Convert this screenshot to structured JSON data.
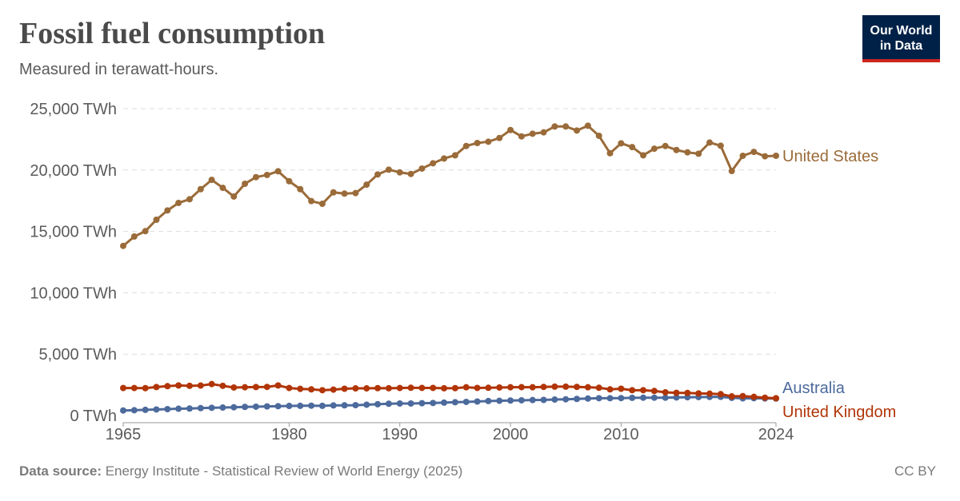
{
  "header": {
    "title": "Fossil fuel consumption",
    "subtitle": "Measured in terawatt-hours.",
    "logo_line1": "Our World",
    "logo_line2": "in Data"
  },
  "footer": {
    "source_label": "Data source:",
    "source_text": "Energy Institute - Statistical Review of World Energy (2025)",
    "license": "CC BY"
  },
  "chart_data": {
    "type": "line",
    "title": "Fossil fuel consumption",
    "subtitle": "Measured in terawatt-hours.",
    "xlim": [
      1965,
      2024
    ],
    "ylim": [
      0,
      25000
    ],
    "grid": true,
    "legend": "right (inline labels at line ends)",
    "x_ticks": [
      1965,
      1980,
      1990,
      2000,
      2010,
      2024
    ],
    "y_ticks": [
      {
        "value": 0,
        "label": "0 TWh"
      },
      {
        "value": 5000,
        "label": "5,000 TWh"
      },
      {
        "value": 10000,
        "label": "10,000 TWh"
      },
      {
        "value": 15000,
        "label": "15,000 TWh"
      },
      {
        "value": 20000,
        "label": "20,000 TWh"
      },
      {
        "value": 25000,
        "label": "25,000 TWh"
      }
    ],
    "x_start": 1965,
    "series": [
      {
        "name": "United States",
        "color": "#9a6b39",
        "values": [
          13820,
          14580,
          15020,
          15950,
          16710,
          17320,
          17620,
          18440,
          19200,
          18550,
          17840,
          18880,
          19420,
          19600,
          19900,
          19090,
          18440,
          17470,
          17250,
          18180,
          18080,
          18120,
          18810,
          19640,
          20030,
          19810,
          19680,
          20120,
          20550,
          20940,
          21200,
          21960,
          22200,
          22310,
          22610,
          23260,
          22740,
          22960,
          23070,
          23550,
          23550,
          23220,
          23610,
          22790,
          21370,
          22180,
          21870,
          21200,
          21740,
          21960,
          21630,
          21440,
          21330,
          22240,
          21980,
          19920,
          21160,
          21480,
          21120,
          21160
        ]
      },
      {
        "name": "Australia",
        "color": "#4c6a9c",
        "values": [
          410,
          430,
          460,
          490,
          520,
          550,
          570,
          600,
          630,
          650,
          670,
          700,
          720,
          740,
          760,
          780,
          790,
          800,
          790,
          820,
          830,
          840,
          880,
          920,
          960,
          980,
          980,
          1000,
          1020,
          1050,
          1080,
          1110,
          1140,
          1180,
          1200,
          1220,
          1240,
          1260,
          1270,
          1300,
          1320,
          1350,
          1380,
          1410,
          1410,
          1420,
          1440,
          1450,
          1450,
          1450,
          1470,
          1490,
          1500,
          1510,
          1520,
          1440,
          1400,
          1410,
          1390,
          1380
        ]
      },
      {
        "name": "United Kingdom",
        "color": "#b13507",
        "values": [
          2240,
          2240,
          2230,
          2320,
          2390,
          2450,
          2420,
          2440,
          2560,
          2420,
          2280,
          2300,
          2320,
          2330,
          2450,
          2240,
          2170,
          2130,
          2060,
          2110,
          2180,
          2210,
          2210,
          2230,
          2220,
          2240,
          2260,
          2250,
          2250,
          2220,
          2230,
          2300,
          2250,
          2260,
          2280,
          2300,
          2310,
          2300,
          2330,
          2350,
          2350,
          2330,
          2300,
          2260,
          2130,
          2180,
          2060,
          2060,
          2000,
          1890,
          1850,
          1840,
          1800,
          1780,
          1740,
          1560,
          1580,
          1520,
          1450,
          1410
        ]
      }
    ]
  }
}
